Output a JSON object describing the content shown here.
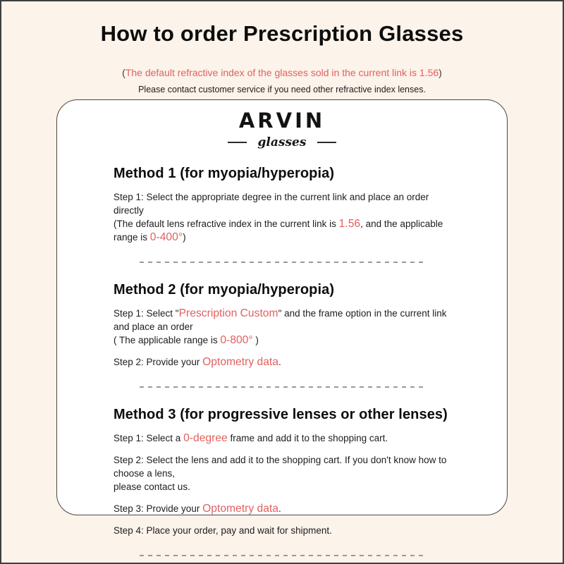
{
  "header": {
    "title": "How to order Prescription Glasses",
    "subtitle": {
      "open": "(",
      "red": "The default refractive index of the glasses sold in the current link is 1.56",
      "close": ")"
    },
    "note": "Please contact customer service if you need other refractive index lenses."
  },
  "brand": {
    "name": "ARVIN",
    "tagline": "glasses"
  },
  "colors": {
    "accent_red": "#e2605f",
    "page_bg": "#fcf3eb",
    "card_bg": "#ffffff",
    "card_border": "#4c4741",
    "divider_gray": "#9a9a9a",
    "text": "#1d1d1d"
  },
  "methods": [
    {
      "heading": "Method 1 (for myopia/hyperopia)",
      "paragraphs": [
        {
          "lines": [
            [
              {
                "t": "Step 1: Select the appropriate degree in the current link and place an order directly"
              }
            ],
            [
              {
                "t": "(The default lens refractive index in the current link is "
              },
              {
                "t": "1.56",
                "red": true
              },
              {
                "t": ", and the applicable range is "
              },
              {
                "t": "0-400°",
                "red": true
              },
              {
                "t": ")"
              }
            ]
          ]
        }
      ]
    },
    {
      "heading": "Method 2 (for myopia/hyperopia)",
      "paragraphs": [
        {
          "lines": [
            [
              {
                "t": "Step 1: Select \""
              },
              {
                "t": "Prescription Custom",
                "red": true
              },
              {
                "t": "\" and the frame option in the current link and place an order"
              }
            ],
            [
              {
                "t": "( The applicable range is "
              },
              {
                "t": "0-800°",
                "red": true
              },
              {
                "t": " )"
              }
            ]
          ]
        },
        {
          "lines": [
            [
              {
                "t": "Step 2: Provide your "
              },
              {
                "t": "Optometry data",
                "red": true
              },
              {
                "t": "."
              }
            ]
          ]
        }
      ]
    },
    {
      "heading": "Method 3 (for progressive lenses or other lenses)",
      "paragraphs": [
        {
          "lines": [
            [
              {
                "t": "Step 1: Select a "
              },
              {
                "t": "0-degree",
                "red": true
              },
              {
                "t": " frame and add it to the shopping cart."
              }
            ]
          ]
        },
        {
          "lines": [
            [
              {
                "t": "Step 2: Select the lens and add it to the shopping cart. If you don't know how to choose a lens,"
              }
            ],
            [
              {
                "t": "please contact us."
              }
            ]
          ]
        },
        {
          "lines": [
            [
              {
                "t": "Step 3: Provide your "
              },
              {
                "t": "Optometry data",
                "red": true
              },
              {
                "t": "."
              }
            ]
          ]
        },
        {
          "lines": [
            [
              {
                "t": "Step 4: Place your order, pay and wait for shipment."
              }
            ]
          ]
        }
      ]
    }
  ]
}
